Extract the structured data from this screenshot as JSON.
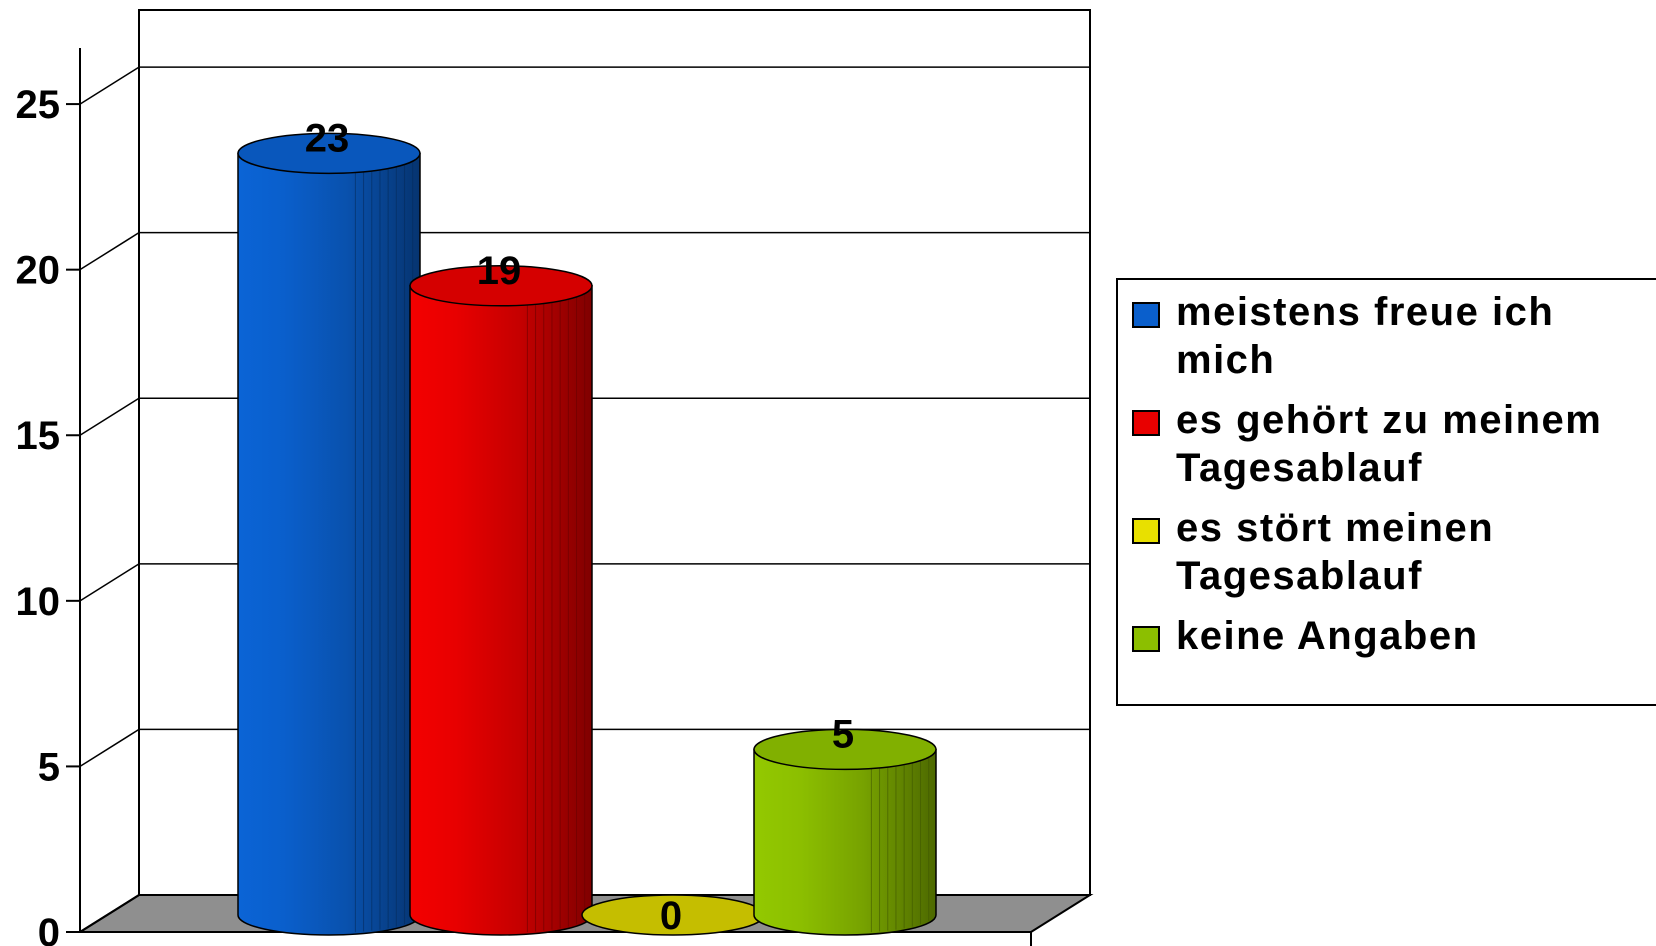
{
  "chart_data": {
    "type": "bar",
    "style": "3d-cylinder",
    "categories": [
      "meistens freue ich mich",
      "es gehört zu meinem Tagesablauf",
      "es stört meinen Tagesablauf",
      "keine Angaben"
    ],
    "values": [
      23,
      19,
      0,
      5
    ],
    "data_labels": [
      "23",
      "19",
      "0",
      "5"
    ],
    "colors": [
      "#0A5FCC",
      "#E80000",
      "#E8E000",
      "#8CBF00"
    ],
    "ylim": [
      0,
      25
    ],
    "yticks": [
      "0",
      "5",
      "10",
      "15",
      "20",
      "25"
    ],
    "grid": true,
    "legend_position": "right",
    "legend": [
      {
        "lines": [
          "meistens freue ich",
          "mich"
        ],
        "color": "#0A5FCC"
      },
      {
        "lines": [
          "es gehört zu meinem",
          "Tagesablauf"
        ],
        "color": "#E80000"
      },
      {
        "lines": [
          "es stört meinen",
          "Tagesablauf"
        ],
        "color": "#E8E000"
      },
      {
        "lines": [
          "keine Angaben"
        ],
        "color": "#8CBF00"
      }
    ]
  }
}
